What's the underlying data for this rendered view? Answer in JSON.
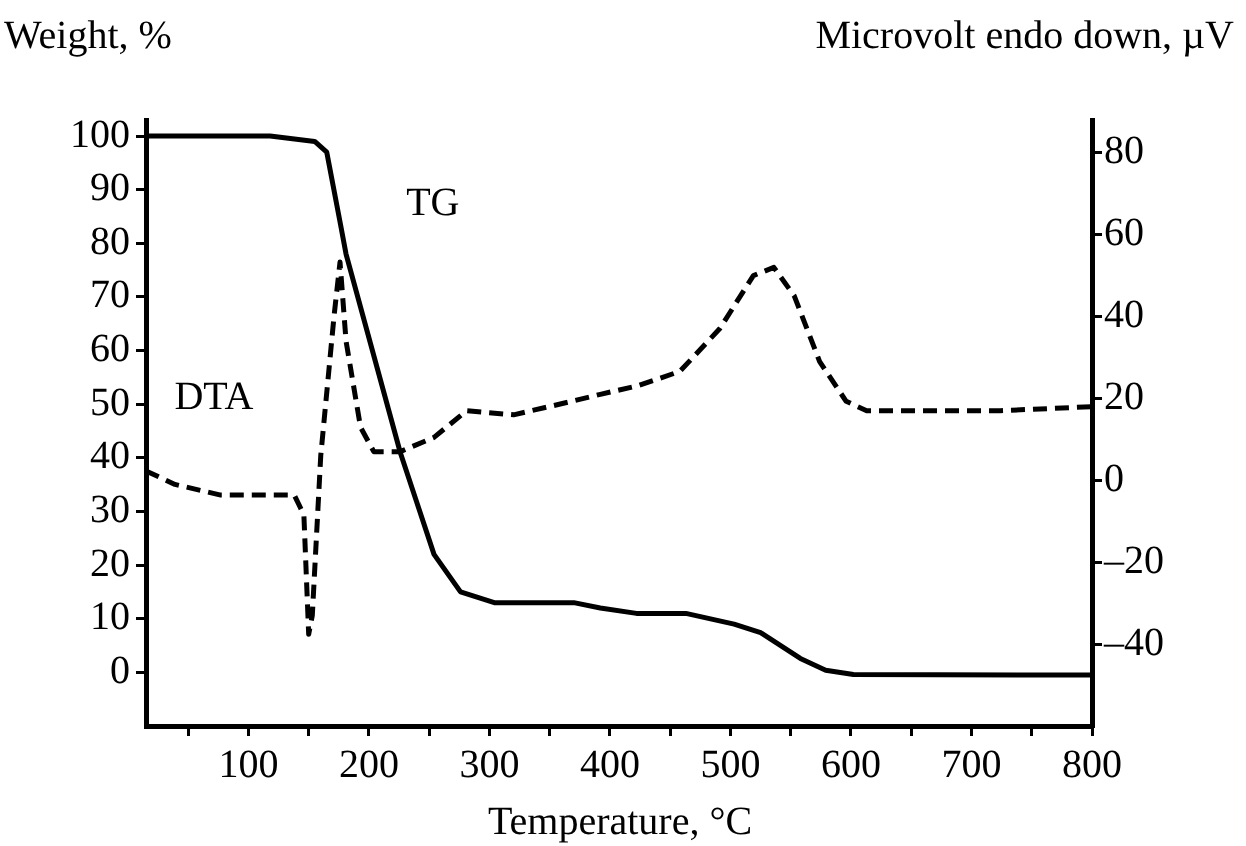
{
  "chart_data": {
    "type": "line",
    "xlabel": "Temperature, °C",
    "ylabel": "Weight, %",
    "y2label": "Microvolt endo down, µV",
    "xlim": [
      15,
      800
    ],
    "xticks": [
      {
        "value": 50,
        "label": null
      },
      100,
      {
        "value": 150,
        "label": null
      },
      200,
      {
        "value": 250,
        "label": null
      },
      300,
      {
        "value": 350,
        "label": null
      },
      400,
      {
        "value": 450,
        "label": null
      },
      500,
      {
        "value": 550,
        "label": null
      },
      600,
      {
        "value": 650,
        "label": null
      },
      700,
      {
        "value": 750,
        "label": null
      },
      800
    ],
    "ylim": [
      -10,
      103
    ],
    "yticks": [
      0,
      10,
      20,
      30,
      40,
      50,
      60,
      70,
      80,
      90,
      100
    ],
    "y2lim": [
      -60,
      88
    ],
    "y2ticks": [
      {
        "value": -40,
        "label": "–40"
      },
      {
        "value": -20,
        "label": "–20"
      },
      0,
      20,
      40,
      60,
      80
    ],
    "grid": false,
    "legend": false,
    "marker": "none",
    "series": [
      {
        "name": "TG",
        "color": "#000000",
        "line_style": "solid",
        "x": [
          15,
          118,
          155,
          165,
          176,
          181,
          226,
          254,
          276,
          304,
          370,
          392,
          422,
          463,
          503,
          525,
          558,
          579,
          602,
          800
        ],
        "values": [
          100,
          100,
          99,
          97,
          84,
          78,
          41,
          22,
          15,
          13,
          13,
          12,
          11,
          11,
          9,
          7.4,
          2.6,
          0.4,
          -0.4,
          -0.5
        ]
      },
      {
        "name": "DTA",
        "color": "#000000",
        "line_style": "dashed",
        "axis": "y2",
        "x": [
          15,
          39,
          77,
          138,
          146,
          150,
          153,
          160,
          171,
          176,
          181,
          193,
          204,
          226,
          254,
          281,
          320,
          364,
          392,
          422,
          458,
          491,
          519,
          536,
          553,
          574,
          596,
          613,
          724,
          800
        ],
        "values": [
          2.3,
          -1,
          -3.6,
          -3.6,
          -8.4,
          -37.6,
          -33,
          6,
          40,
          53.3,
          34,
          13,
          7,
          7,
          10.5,
          17,
          16,
          19,
          21,
          23,
          26.6,
          37,
          50,
          52,
          45,
          29,
          19.3,
          17,
          17,
          18
        ]
      }
    ]
  }
}
